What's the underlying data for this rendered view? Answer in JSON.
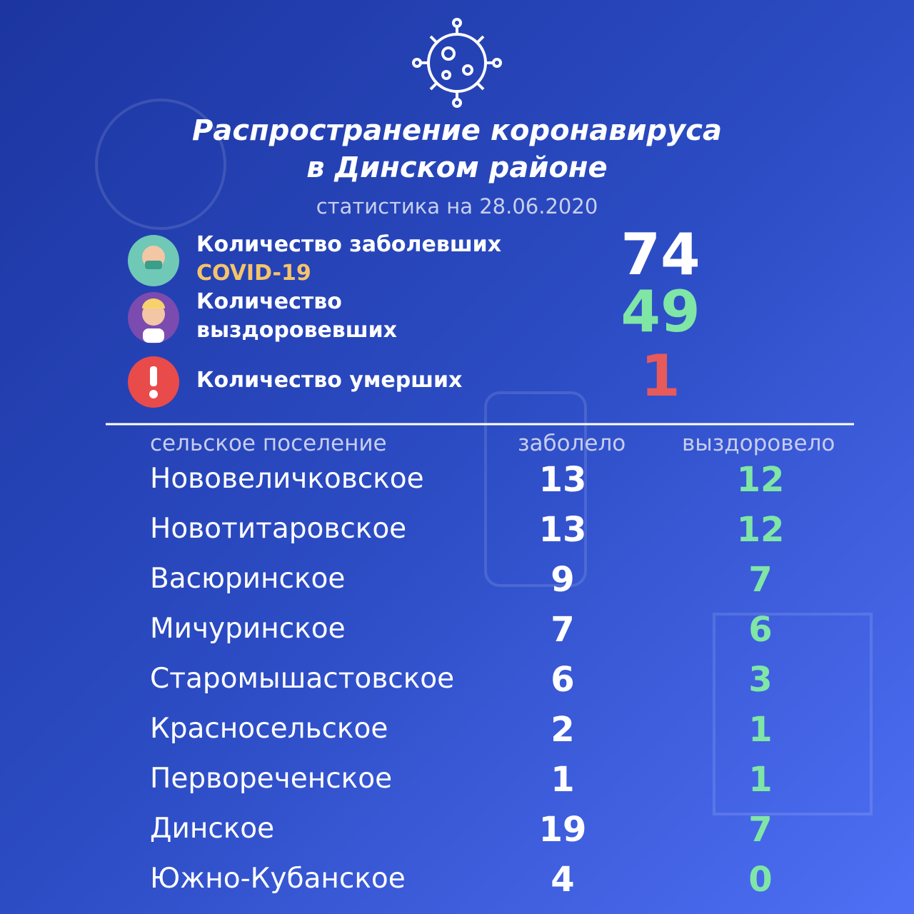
{
  "header": {
    "title": [
      "Распространение коронавируса",
      "в Динском районе"
    ],
    "subtitle": "статистика на 28.06.2020"
  },
  "summary": [
    {
      "label": [
        "Количество заболевших",
        "COVID-19"
      ],
      "value": 74
    },
    {
      "label": [
        "Количество",
        "выздоровевших"
      ],
      "value": 49
    },
    {
      "label": [
        "Количество умерших"
      ],
      "value": 1
    }
  ],
  "table": {
    "columns": [
      "сельское поселение",
      "заболело",
      "выздоровело"
    ],
    "rows": [
      [
        "Нововеличковское",
        13,
        12
      ],
      [
        "Новотитаровское",
        13,
        12
      ],
      [
        "Васюринское",
        9,
        7
      ],
      [
        "Мичуринское",
        7,
        6
      ],
      [
        "Старомышастовское",
        6,
        3
      ],
      [
        "Красносельское",
        2,
        1
      ],
      [
        "Первореченское",
        1,
        1
      ],
      [
        "Динское",
        19,
        7
      ],
      [
        "Южно-Кубанское",
        4,
        0
      ]
    ]
  }
}
